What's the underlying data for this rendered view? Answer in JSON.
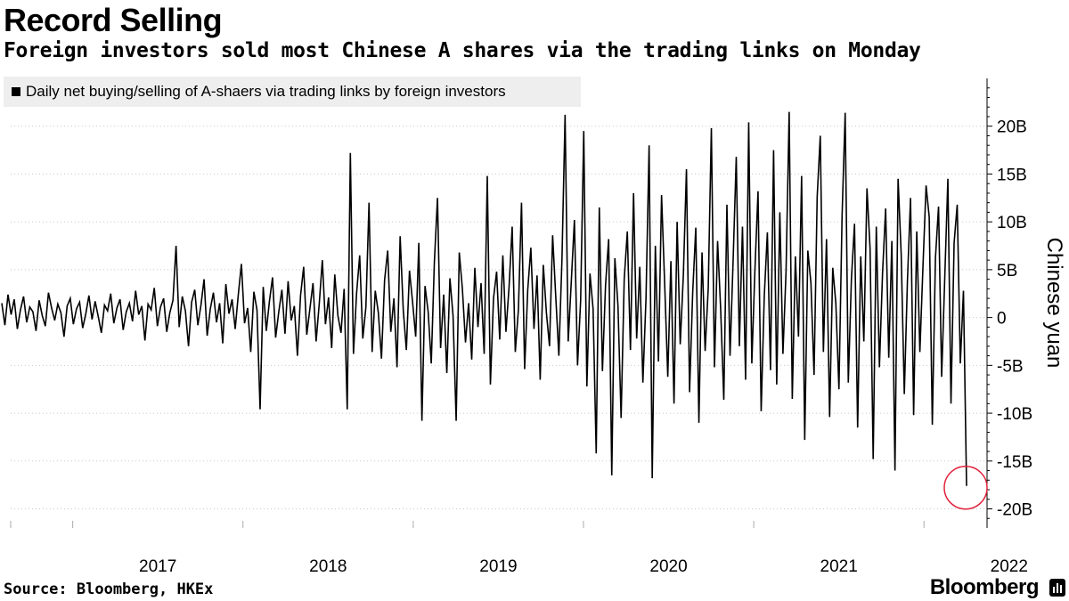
{
  "header": {
    "title": "Record Selling",
    "subtitle": "Foreign investors sold most Chinese A shares via the trading links on Monday"
  },
  "footer": {
    "source": "Source: Bloomberg, HKEx",
    "brand": "Bloomberg"
  },
  "icons": {
    "brand_icon": "bloomberg-terminal-icon"
  },
  "colors": {
    "line": "#000000",
    "highlight": "#e0203a",
    "legend_bg": "#eeeeee"
  },
  "chart_data": {
    "type": "line",
    "series": [
      {
        "name": "Daily net buying/selling of A-shaers via trading links by foreign investors",
        "x_start": "2016-08",
        "x_end": "2022-04",
        "values": [
          1.5,
          -0.8,
          2.4,
          0.3,
          1.9,
          -1.2,
          0.8,
          2.2,
          -0.5,
          1.1,
          0.6,
          -1.4,
          1.8,
          0.2,
          -0.9,
          2.6,
          1.0,
          -0.3,
          1.4,
          0.5,
          -2.0,
          1.2,
          2.0,
          -0.7,
          0.9,
          1.6,
          -1.1,
          0.4,
          2.3,
          -0.2,
          1.7,
          0.1,
          -1.6,
          1.3,
          0.7,
          2.5,
          -0.6,
          1.0,
          1.9,
          -1.3,
          0.6,
          1.5,
          -0.4,
          2.8,
          0.3,
          1.2,
          -2.4,
          1.4,
          0.8,
          3.1,
          -0.9,
          1.1,
          2.0,
          -1.5,
          0.5,
          1.8,
          7.5,
          -1.0,
          2.2,
          0.7,
          -3.0,
          1.6,
          2.9,
          -0.8,
          1.3,
          4.0,
          -1.9,
          0.9,
          2.6,
          -0.5,
          1.5,
          -2.7,
          3.5,
          0.4,
          1.9,
          -1.2,
          2.4,
          5.6,
          -0.6,
          1.0,
          -3.6,
          2.7,
          0.8,
          -9.6,
          3.2,
          -1.4,
          1.7,
          4.2,
          -2.1,
          0.6,
          2.9,
          -1.7,
          3.8,
          -0.3,
          1.2,
          -4.0,
          2.3,
          5.3,
          -1.8,
          0.9,
          3.6,
          -2.5,
          1.4,
          6.0,
          -0.7,
          2.1,
          -3.2,
          4.5,
          0.2,
          -1.6,
          3.0,
          -9.6,
          17.2,
          -3.8,
          2.5,
          6.5,
          -2.2,
          1.1,
          12.0,
          -3.6,
          2.8,
          0.5,
          -4.3,
          3.9,
          7.0,
          -1.5,
          2.0,
          -5.2,
          8.5,
          0.8,
          -3.4,
          4.9,
          1.6,
          -2.0,
          7.8,
          -10.8,
          3.3,
          0.6,
          -4.8,
          5.8,
          12.5,
          -3.2,
          2.4,
          -5.8,
          4.1,
          0.2,
          -10.8,
          6.8,
          3.0,
          -2.6,
          1.5,
          -4.4,
          5.2,
          -1.0,
          3.6,
          -3.8,
          14.8,
          -7.0,
          2.0,
          4.8,
          -2.3,
          6.5,
          -1.5,
          3.2,
          9.5,
          -3.6,
          0.8,
          12.0,
          -5.4,
          2.9,
          7.3,
          -1.2,
          4.4,
          -6.5,
          5.5,
          0.5,
          -3.0,
          8.6,
          2.2,
          -4.0,
          6.1,
          21.2,
          -2.5,
          3.8,
          10.2,
          -5.0,
          1.8,
          19.5,
          -7.2,
          4.6,
          0.9,
          -14.2,
          11.5,
          -5.6,
          3.4,
          8.2,
          -16.5,
          6.2,
          1.2,
          -10.5,
          4.0,
          9.0,
          -3.4,
          13.0,
          -2.2,
          5.3,
          -6.8,
          2.0,
          18.0,
          -16.8,
          7.5,
          -4.6,
          12.8,
          3.5,
          -6.2,
          5.9,
          -9.0,
          10.0,
          -2.8,
          4.4,
          15.5,
          -7.8,
          2.6,
          9.4,
          -11.0,
          6.8,
          -3.5,
          3.1,
          19.8,
          -5.2,
          8.0,
          0.8,
          -8.6,
          11.8,
          -4.0,
          6.0,
          16.8,
          -3.0,
          9.5,
          -6.5,
          20.4,
          -4.8,
          5.0,
          13.2,
          -9.8,
          2.2,
          8.9,
          -5.5,
          17.5,
          -7.0,
          11.0,
          -3.8,
          4.8,
          21.5,
          -8.5,
          6.4,
          -2.0,
          14.8,
          -12.8,
          7.0,
          3.6,
          -6.0,
          12.6,
          19.0,
          -3.6,
          8.2,
          -10.4,
          5.2,
          1.5,
          -7.5,
          10.6,
          21.4,
          -6.8,
          4.0,
          9.8,
          -11.5,
          6.4,
          -2.5,
          13.5,
          7.2,
          -14.8,
          9.5,
          -5.2,
          4.6,
          11.4,
          -4.2,
          8.0,
          -16.0,
          14.5,
          6.6,
          -8.0,
          3.8,
          12.5,
          -10.2,
          9.0,
          -3.6,
          5.4,
          13.8,
          10.5,
          -11.2,
          6.2,
          11.6,
          -6.2,
          4.2,
          14.5,
          -9.0,
          7.8,
          11.8,
          -4.8,
          2.8,
          -17.6
        ]
      }
    ],
    "ylabel": "Chinese yuan",
    "y_ticks": [
      "20B",
      "15B",
      "10B",
      "5B",
      "0",
      "-5B",
      "-10B",
      "-15B",
      "-20B"
    ],
    "y_tick_values": [
      20,
      15,
      10,
      5,
      0,
      -5,
      -10,
      -15,
      -20
    ],
    "ylim": [
      -22,
      25
    ],
    "x_ticks": [
      "2017",
      "2018",
      "2019",
      "2020",
      "2021",
      "2022"
    ],
    "x_tick_dates": [
      "2017-01",
      "2018-01",
      "2019-01",
      "2020-01",
      "2021-01",
      "2022-01"
    ],
    "highlight": {
      "date": "2022-04",
      "value": -17.6,
      "marker": "circle"
    },
    "y_axis_side": "right",
    "grid": "dotted horizontal",
    "legend": "top-left"
  }
}
